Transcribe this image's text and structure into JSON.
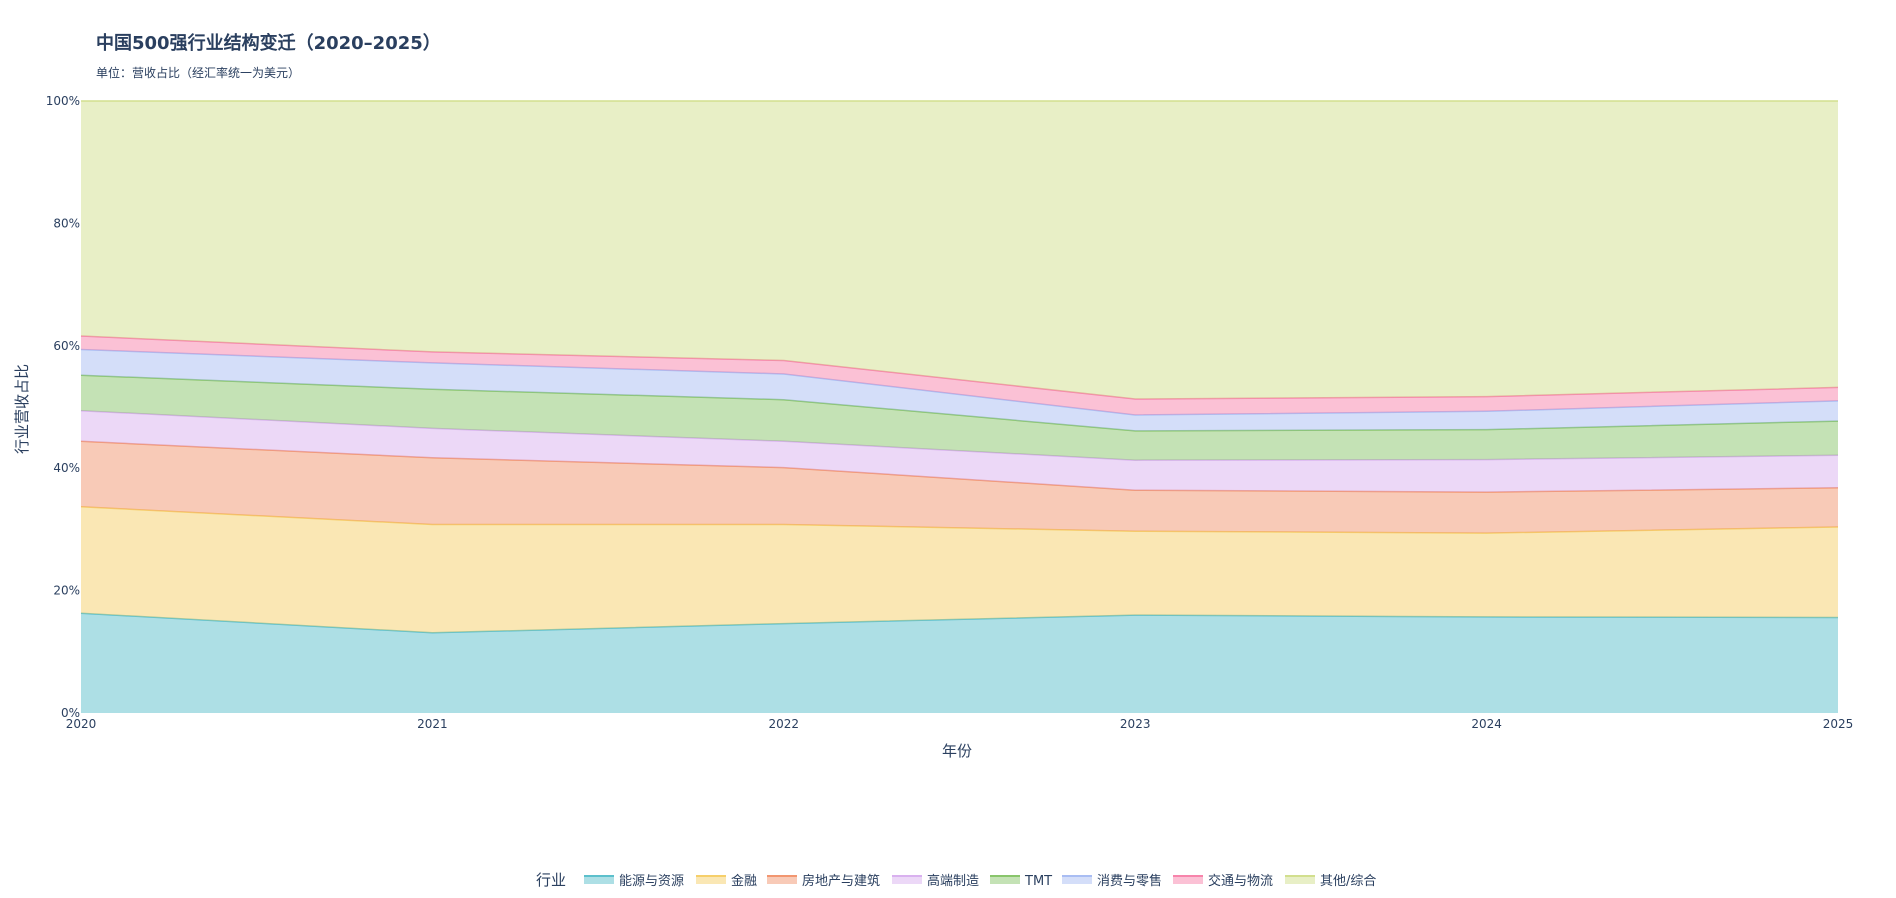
{
  "chart_data": {
    "type": "area",
    "stacked": true,
    "normalized": true,
    "title": "中国500强行业结构变迁（2020–2025）",
    "subtitle": "单位：营收占比（经汇率统一为美元）",
    "xlabel": "年份",
    "ylabel": "行业营收占比",
    "x": [
      "2020",
      "2021",
      "2022",
      "2023",
      "2024",
      "2025"
    ],
    "ylim": [
      0,
      100
    ],
    "yticks": [
      "0%",
      "20%",
      "40%",
      "60%",
      "80%",
      "100%"
    ],
    "legend_title": "行业",
    "legend_position": "bottom-center",
    "grid": false,
    "series": [
      {
        "name": "能源与资源",
        "values": [
          16.3,
          13.1,
          14.6,
          16.0,
          15.7,
          15.6
        ],
        "color": "#5cc0cc"
      },
      {
        "name": "金融",
        "values": [
          17.4,
          17.7,
          16.2,
          13.7,
          13.7,
          14.8
        ],
        "color": "#f6cf6a"
      },
      {
        "name": "房地产与建筑",
        "values": [
          10.7,
          10.9,
          9.3,
          6.7,
          6.7,
          6.4
        ],
        "color": "#f29670"
      },
      {
        "name": "高端制造",
        "values": [
          5.0,
          4.8,
          4.3,
          4.9,
          5.3,
          5.3
        ],
        "color": "#d9b1ef"
      },
      {
        "name": "TMT",
        "values": [
          5.8,
          6.4,
          6.8,
          4.8,
          4.9,
          5.6
        ],
        "color": "#89c56b"
      },
      {
        "name": "消费与零售",
        "values": [
          4.2,
          4.3,
          4.2,
          2.6,
          3.0,
          3.3
        ],
        "color": "#a9bdf3"
      },
      {
        "name": "交通与物流",
        "values": [
          2.2,
          1.8,
          2.2,
          2.6,
          2.4,
          2.2
        ],
        "color": "#f784ab"
      },
      {
        "name": "其他/综合",
        "values": [
          38.4,
          41.0,
          42.4,
          48.7,
          48.3,
          46.8
        ],
        "color": "#d2df8e"
      }
    ]
  }
}
